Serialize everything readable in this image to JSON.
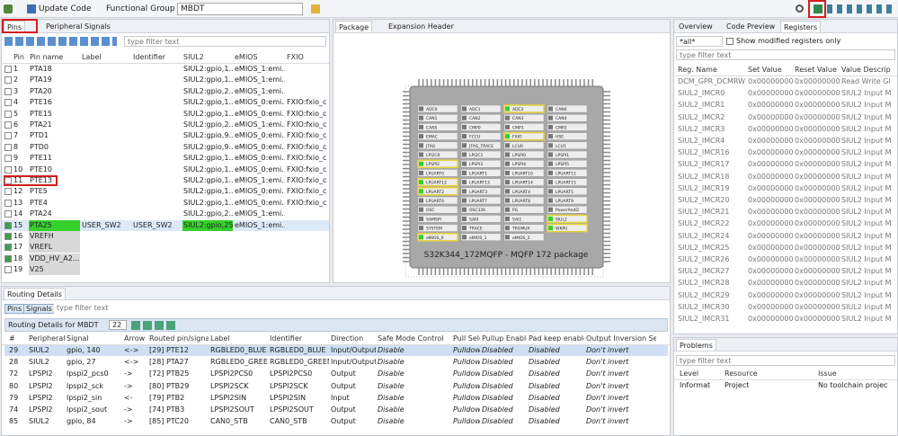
{
  "toolbar": {
    "update_code": "Update Code",
    "functional_group": "Functional Group",
    "group_value": "MBDT"
  },
  "pins_panel": {
    "tabs": [
      "Pins",
      "Peripheral Signals"
    ],
    "filter": "type filter text",
    "columns": [
      "Pin",
      "Pin name",
      "Label",
      "Identifier",
      "SIUL2",
      "eMIOS",
      "FXIO"
    ],
    "rows": [
      {
        "checked": false,
        "cells": [
          "1",
          "PTA18",
          "",
          "",
          "SIUL2:gpio,1...",
          "eMIOS_1:emi...",
          ""
        ]
      },
      {
        "checked": false,
        "cells": [
          "2",
          "PTA19",
          "",
          "",
          "SIUL2:gpio,1...",
          "eMIOS_1:emi...",
          ""
        ]
      },
      {
        "checked": false,
        "cells": [
          "3",
          "PTA20",
          "",
          "",
          "SIUL2:gpio,2...",
          "eMIOS_1:emi...",
          ""
        ]
      },
      {
        "checked": false,
        "cells": [
          "4",
          "PTE16",
          "",
          "",
          "SIUL2:gpio,1...",
          "eMIOS_0:emi...",
          "FXIO:fxio_c"
        ]
      },
      {
        "checked": false,
        "cells": [
          "5",
          "PTE15",
          "",
          "",
          "SIUL2:gpio,1...",
          "eMIOS_0:emi...",
          "FXIO:fxio_c"
        ]
      },
      {
        "checked": false,
        "cells": [
          "6",
          "PTA21",
          "",
          "",
          "SIUL2:gpio,2...",
          "eMIOS_1:emi...",
          "FXIO:fxio_c"
        ]
      },
      {
        "checked": false,
        "cells": [
          "7",
          "PTD1",
          "",
          "",
          "SIUL2:gpio,9...",
          "eMIOS_0:emi...",
          "FXIO:fxio_c"
        ]
      },
      {
        "checked": false,
        "cells": [
          "8",
          "PTD0",
          "",
          "",
          "SIUL2:gpio,9...",
          "eMIOS_0:emi...",
          "FXIO:fxio_c"
        ]
      },
      {
        "checked": false,
        "cells": [
          "9",
          "PTE11",
          "",
          "",
          "SIUL2:gpio,1...",
          "eMIOS_0:emi...",
          "FXIO:fxio_c"
        ]
      },
      {
        "checked": false,
        "cells": [
          "10",
          "PTE10",
          "",
          "",
          "SIUL2:gpio,1...",
          "eMIOS_0:emi...",
          "FXIO:fxio_c"
        ]
      },
      {
        "checked": false,
        "cells": [
          "11",
          "PTE13",
          "",
          "",
          "SIUL2:gpio,1...",
          "eMIOS_1:emi...",
          "FXIO:fxio_c"
        ]
      },
      {
        "checked": false,
        "cells": [
          "12",
          "PTE5",
          "",
          "",
          "SIUL2:gpio,1...",
          "eMIOS_0:emi...",
          "FXIO:fxio_c"
        ]
      },
      {
        "checked": false,
        "cells": [
          "13",
          "PTE4",
          "",
          "",
          "SIUL2:gpio,1...",
          "eMIOS_0:emi...",
          "FXIO:fxio_c"
        ]
      },
      {
        "checked": false,
        "cells": [
          "14",
          "PTA24",
          "",
          "",
          "SIUL2:gpio,2...",
          "eMIOS_1:emi...",
          ""
        ]
      },
      {
        "checked": true,
        "cells": [
          "15",
          "PTA25",
          "USER_SW2",
          "USER_SW2",
          "SIUL2:gpio,25|...",
          "eMIOS_1:emi...",
          ""
        ]
      },
      {
        "checked": true,
        "cells": [
          "16",
          "VREFH",
          "",
          "",
          "",
          "",
          ""
        ]
      },
      {
        "checked": true,
        "cells": [
          "17",
          "VREFL",
          "",
          "",
          "",
          "",
          ""
        ]
      },
      {
        "checked": true,
        "cells": [
          "18",
          "VDD_HV_A2...",
          "",
          "",
          "",
          "",
          ""
        ]
      },
      {
        "checked": false,
        "cells": [
          "19",
          "V25",
          "",
          "",
          "",
          "",
          ""
        ]
      }
    ]
  },
  "package_panel": {
    "tabs": [
      "Package",
      "Expansion Header"
    ],
    "chip_label": "S32K344_172MQFP - MQFP 172 package",
    "blocks": [
      {
        "name": "ADC0",
        "on": false
      },
      {
        "name": "ADC1",
        "on": false
      },
      {
        "name": "ADC2",
        "on": true
      },
      {
        "name": "CAN0",
        "on": false
      },
      {
        "name": "CAN1",
        "on": false
      },
      {
        "name": "CAN2",
        "on": false
      },
      {
        "name": "CAN3",
        "on": false
      },
      {
        "name": "CAN4",
        "on": false
      },
      {
        "name": "CAN5",
        "on": false
      },
      {
        "name": "CMP0",
        "on": false
      },
      {
        "name": "CMP1",
        "on": false
      },
      {
        "name": "CMP2",
        "on": false
      },
      {
        "name": "EMAC",
        "on": false
      },
      {
        "name": "FCCU",
        "on": false
      },
      {
        "name": "FXIO",
        "on": true
      },
      {
        "name": "HSE",
        "on": false
      },
      {
        "name": "JTAG",
        "on": false
      },
      {
        "name": "JTAG_TRACE",
        "on": false
      },
      {
        "name": "LCU0",
        "on": false
      },
      {
        "name": "LCU1",
        "on": false
      },
      {
        "name": "LPI2C0",
        "on": false
      },
      {
        "name": "LPI2C1",
        "on": false
      },
      {
        "name": "LPSPI0",
        "on": false
      },
      {
        "name": "LPSPI1",
        "on": false
      },
      {
        "name": "LPSPI2",
        "on": true
      },
      {
        "name": "LPSPI3",
        "on": false
      },
      {
        "name": "LPSPI4",
        "on": false
      },
      {
        "name": "LPSPI5",
        "on": false
      },
      {
        "name": "LPUART0",
        "on": false
      },
      {
        "name": "LPUART1",
        "on": false
      },
      {
        "name": "LPUART10",
        "on": false
      },
      {
        "name": "LPUART11",
        "on": false
      },
      {
        "name": "LPUART12",
        "on": true
      },
      {
        "name": "LPUART13",
        "on": false
      },
      {
        "name": "LPUART14",
        "on": false
      },
      {
        "name": "LPUART15",
        "on": false
      },
      {
        "name": "LPUART2",
        "on": true
      },
      {
        "name": "LPUART3",
        "on": false
      },
      {
        "name": "LPUART4",
        "on": false
      },
      {
        "name": "LPUART5",
        "on": false
      },
      {
        "name": "LPUART6",
        "on": false
      },
      {
        "name": "LPUART7",
        "on": false
      },
      {
        "name": "LPUART8",
        "on": false
      },
      {
        "name": "LPUART9",
        "on": false
      },
      {
        "name": "OSC",
        "on": false
      },
      {
        "name": "OSC32K",
        "on": false
      },
      {
        "name": "PG",
        "on": false
      },
      {
        "name": "PowerAndD",
        "on": false
      },
      {
        "name": "SAMSPI",
        "on": false
      },
      {
        "name": "SAI0",
        "on": false
      },
      {
        "name": "SAI1",
        "on": false
      },
      {
        "name": "SIUL2",
        "on": true
      },
      {
        "name": "SYSTEM",
        "on": false
      },
      {
        "name": "TRACE",
        "on": false
      },
      {
        "name": "TRGMUX",
        "on": false
      },
      {
        "name": "WKPU",
        "on": true
      },
      {
        "name": "eMIOS_0",
        "on": true
      },
      {
        "name": "eMIOS_1",
        "on": false
      },
      {
        "name": "eMIOS_2",
        "on": false
      }
    ]
  },
  "registers_panel": {
    "tabs": [
      "Overview",
      "Code Preview",
      "Registers"
    ],
    "scope": "*all*",
    "modified_only": "Show modified registers only",
    "filter": "type filter text",
    "columns": [
      "Reg. Name",
      "Set Value",
      "Reset Value",
      "Value Descrip"
    ],
    "rows": [
      [
        "DCM_GPR_DCMRW",
        "0x00000000",
        "0x00000000",
        "Read Write Gl"
      ],
      [
        "SIUL2_IMCR0",
        "0x00000000",
        "0x00000000",
        "SIUL2 Input M"
      ],
      [
        "SIUL2_IMCR1",
        "0x00000000",
        "0x00000000",
        "SIUL2 Input M"
      ],
      [
        "SIUL2_IMCR2",
        "0x00000000",
        "0x00000000",
        "SIUL2 Input M"
      ],
      [
        "SIUL2_IMCR3",
        "0x00000000",
        "0x00000000",
        "SIUL2 Input M"
      ],
      [
        "SIUL2_IMCR4",
        "0x00000000",
        "0x00000000",
        "SIUL2 Input M"
      ],
      [
        "SIUL2_IMCR16",
        "0x00000000",
        "0x00000000",
        "SIUL2 Input M"
      ],
      [
        "SIUL2_IMCR17",
        "0x00000000",
        "0x00000000",
        "SIUL2 Input M"
      ],
      [
        "SIUL2_IMCR18",
        "0x00000000",
        "0x00000000",
        "SIUL2 Input M"
      ],
      [
        "SIUL2_IMCR19",
        "0x00000000",
        "0x00000000",
        "SIUL2 Input M"
      ],
      [
        "SIUL2_IMCR20",
        "0x00000000",
        "0x00000000",
        "SIUL2 Input M"
      ],
      [
        "SIUL2_IMCR21",
        "0x00000000",
        "0x00000000",
        "SIUL2 Input M"
      ],
      [
        "SIUL2_IMCR22",
        "0x00000000",
        "0x00000000",
        "SIUL2 Input M"
      ],
      [
        "SIUL2_IMCR24",
        "0x00000000",
        "0x00000000",
        "SIUL2 Input M"
      ],
      [
        "SIUL2_IMCR25",
        "0x00000000",
        "0x00000000",
        "SIUL2 Input M"
      ],
      [
        "SIUL2_IMCR26",
        "0x00000000",
        "0x00000000",
        "SIUL2 Input M"
      ],
      [
        "SIUL2_IMCR27",
        "0x00000000",
        "0x00000000",
        "SIUL2 Input M"
      ],
      [
        "SIUL2_IMCR28",
        "0x00000000",
        "0x00000000",
        "SIUL2 Input M"
      ],
      [
        "SIUL2_IMCR29",
        "0x00000000",
        "0x00000000",
        "SIUL2 Input M"
      ],
      [
        "SIUL2_IMCR30",
        "0x00000000",
        "0x00000000",
        "SIUL2 Input M"
      ],
      [
        "SIUL2_IMCR31",
        "0x00000000",
        "0x00000000",
        "SIUL2 Input M"
      ]
    ]
  },
  "routing_panel": {
    "title": "Routing Details",
    "tabs": [
      "Pins",
      "Signals"
    ],
    "filter": "type filter text",
    "header": "Routing Details for MBDT",
    "count": "22",
    "columns": [
      "#",
      "Peripheral",
      "Signal",
      "Arrow",
      "Routed pin/signal",
      "Label",
      "Identifier",
      "Direction",
      "Safe Mode Control",
      "Pull Select",
      "Pullup Enable",
      "Pad keep enable",
      "Output Inversion Sele"
    ],
    "rows": [
      [
        "29",
        "SIUL2",
        "gpio, 140",
        "<->",
        "[29] PTE12",
        "RGBLED0_BLUE",
        "RGBLED0_BLUE",
        "Input/Output",
        "Disable",
        "Pulldown",
        "Disabled",
        "Disabled",
        "Don't invert"
      ],
      [
        "28",
        "SIUL2",
        "gpio, 27",
        "<->",
        "[28] PTA27",
        "RGBLED0_GREEN",
        "RGBLED0_GREEN",
        "Input/Output",
        "Disable",
        "Pulldown",
        "Disabled",
        "Disabled",
        "Don't invert"
      ],
      [
        "72",
        "LPSPI2",
        "lpspi2_pcs0",
        "->",
        "[72] PTB25",
        "LPSPI2PCS0",
        "LPSPI2PCS0",
        "Output",
        "Disable",
        "Pulldown",
        "Disabled",
        "Disabled",
        "Don't invert"
      ],
      [
        "80",
        "LPSPI2",
        "lpspi2_sck",
        "->",
        "[80] PTB29",
        "LPSPI2SCK",
        "LPSPI2SCK",
        "Output",
        "Disable",
        "Pulldown",
        "Disabled",
        "Disabled",
        "Don't invert"
      ],
      [
        "79",
        "LPSPI2",
        "lpspi2_sin",
        "<-",
        "[79] PTB2",
        "LPSPI2SIN",
        "LPSPI2SIN",
        "Input",
        "Disable",
        "Pulldown",
        "Disabled",
        "Disabled",
        "Don't invert"
      ],
      [
        "74",
        "LPSPI2",
        "lpspi2_sout",
        "->",
        "[74] PTB3",
        "LPSPI2SOUT",
        "LPSPI2SOUT",
        "Output",
        "Disable",
        "Pulldown",
        "Disabled",
        "Disabled",
        "Don't invert"
      ],
      [
        "85",
        "SIUL2",
        "gpio, 84",
        "->",
        "[85] PTC20",
        "CAN0_STB",
        "CAN0_STB",
        "Output",
        "Disable",
        "Pulldown",
        "Disabled",
        "Disabled",
        "Don't invert"
      ]
    ]
  },
  "problems_panel": {
    "title": "Problems",
    "filter": "type filter text",
    "columns": [
      "Level",
      "Resource",
      "Issue"
    ],
    "rows": [
      [
        "Informat",
        "Project",
        "No toolchain project det"
      ]
    ]
  }
}
